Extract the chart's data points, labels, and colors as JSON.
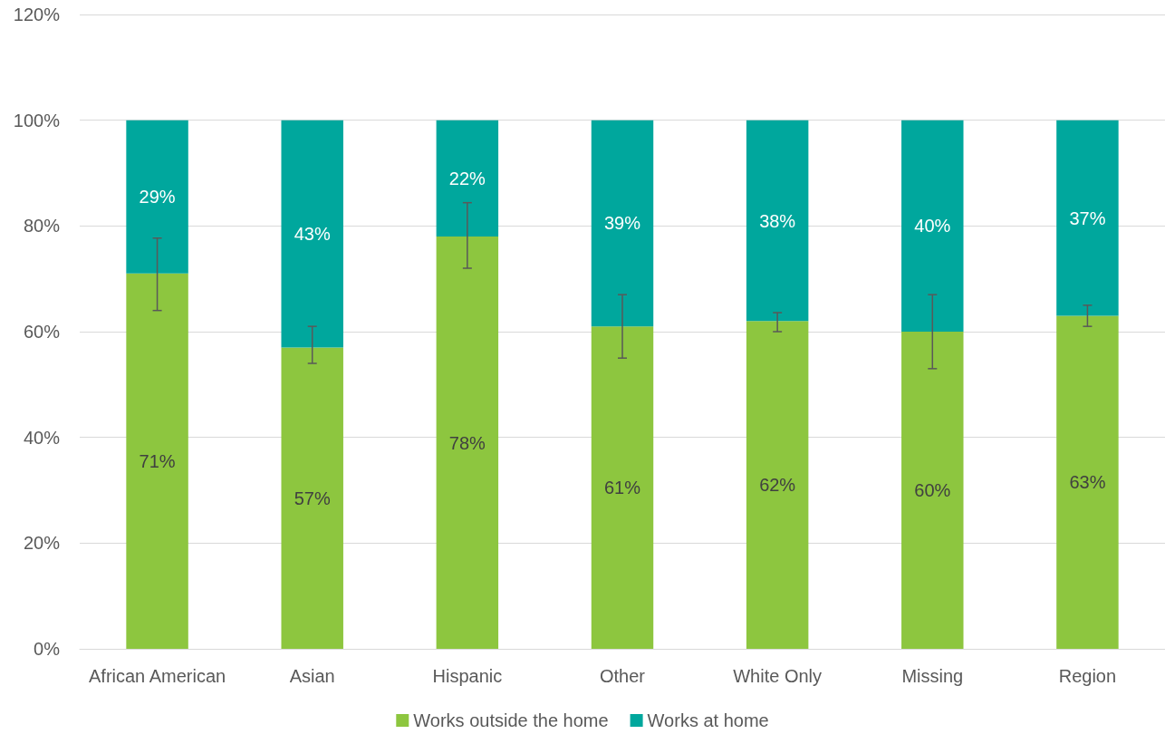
{
  "chart_data": {
    "type": "bar",
    "stacked": true,
    "categories": [
      "African American",
      "Asian",
      "Hispanic",
      "Other",
      "White Only",
      "Missing",
      "Region"
    ],
    "series": [
      {
        "name": "Works outside the home",
        "color": "#8dc63f",
        "values": [
          71,
          57,
          78,
          61,
          62,
          60,
          63
        ],
        "value_labels": [
          "71%",
          "57%",
          "78%",
          "61%",
          "62%",
          "60%",
          "63%"
        ],
        "errors": [
          [
            64,
            77.7
          ],
          [
            54,
            61
          ],
          [
            72,
            84.4
          ],
          [
            55,
            67
          ],
          [
            60,
            63.6
          ],
          [
            53,
            67
          ],
          [
            61,
            65
          ]
        ]
      },
      {
        "name": "Works at home",
        "color": "#00a79d",
        "values": [
          29,
          43,
          22,
          39,
          38,
          40,
          37
        ],
        "value_labels": [
          "29%",
          "43%",
          "22%",
          "39%",
          "38%",
          "40%",
          "37%"
        ]
      }
    ],
    "ylim": [
      0,
      120
    ],
    "yticks": [
      {
        "value": 0,
        "label": "0%"
      },
      {
        "value": 20,
        "label": "20%"
      },
      {
        "value": 40,
        "label": "40%"
      },
      {
        "value": 60,
        "label": "60%"
      },
      {
        "value": 80,
        "label": "80%"
      },
      {
        "value": 100,
        "label": "100%"
      },
      {
        "value": 120,
        "label": "120%"
      }
    ],
    "grid": "y",
    "legend": "bottom"
  }
}
